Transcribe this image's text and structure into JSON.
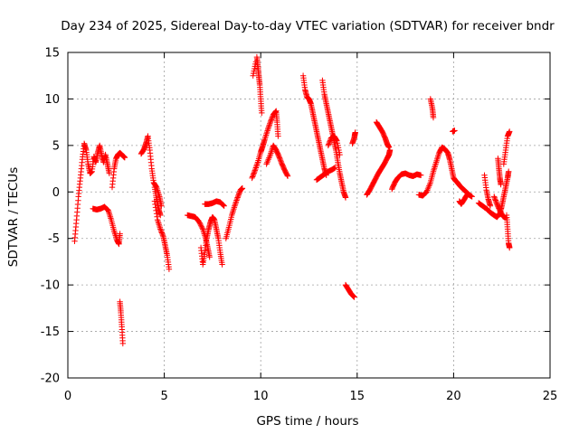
{
  "chart_data": {
    "type": "scatter",
    "title": "Day 234 of 2025, Sidereal Day-to-day VTEC variation (SDTVAR) for receiver bndr",
    "xlabel": "GPS time / hours",
    "ylabel": "SDTVAR / TECUs",
    "xlim": [
      0,
      25
    ],
    "ylim": [
      -20,
      15
    ],
    "xticks": [
      0,
      5,
      10,
      15,
      20,
      25
    ],
    "yticks": [
      -20,
      -15,
      -10,
      -5,
      0,
      5,
      10,
      15
    ],
    "grid": true,
    "marker": "+",
    "marker_color": "#ff0000",
    "series": [
      {
        "name": "SDTVAR",
        "tracks": [
          [
            [
              0.35,
              -5.3
            ],
            [
              0.45,
              -3.0
            ],
            [
              0.55,
              -0.5
            ],
            [
              0.65,
              1.5
            ],
            [
              0.75,
              3.5
            ],
            [
              0.85,
              5.2
            ],
            [
              0.95,
              4.5
            ],
            [
              1.05,
              3.0
            ],
            [
              1.15,
              2.0
            ],
            [
              1.25,
              2.2
            ],
            [
              1.35,
              3.8
            ],
            [
              1.45,
              3.2
            ],
            [
              1.55,
              4.2
            ],
            [
              1.65,
              5.0
            ],
            [
              1.75,
              4.0
            ],
            [
              1.85,
              3.2
            ],
            [
              1.95,
              4.0
            ],
            [
              2.05,
              3.0
            ],
            [
              2.15,
              2.0
            ]
          ],
          [
            [
              1.3,
              -1.8
            ],
            [
              1.5,
              -1.9
            ],
            [
              1.7,
              -1.8
            ],
            [
              1.9,
              -1.6
            ],
            [
              2.1,
              -2.0
            ],
            [
              2.25,
              -3.0
            ],
            [
              2.4,
              -4.2
            ],
            [
              2.55,
              -5.2
            ],
            [
              2.65,
              -5.6
            ],
            [
              2.7,
              -4.5
            ]
          ],
          [
            [
              2.3,
              0.5
            ],
            [
              2.4,
              2.5
            ],
            [
              2.5,
              3.6
            ],
            [
              2.6,
              4.0
            ],
            [
              2.7,
              4.2
            ],
            [
              2.85,
              3.9
            ],
            [
              2.95,
              3.7
            ]
          ],
          [
            [
              2.7,
              -11.8
            ],
            [
              2.75,
              -13.0
            ],
            [
              2.8,
              -14.5
            ],
            [
              2.85,
              -16.3
            ]
          ],
          [
            [
              3.8,
              4.1
            ],
            [
              3.95,
              4.6
            ],
            [
              4.05,
              5.2
            ],
            [
              4.15,
              6.0
            ],
            [
              4.25,
              4.5
            ],
            [
              4.35,
              2.5
            ],
            [
              4.45,
              1.0
            ],
            [
              4.6,
              0.5
            ],
            [
              4.75,
              -0.5
            ],
            [
              4.85,
              -1.5
            ]
          ],
          [
            [
              4.5,
              -1.0
            ],
            [
              4.65,
              -3.0
            ],
            [
              4.8,
              -4.0
            ],
            [
              4.95,
              -4.8
            ],
            [
              5.05,
              -5.8
            ],
            [
              5.15,
              -6.8
            ],
            [
              5.25,
              -8.3
            ]
          ],
          [
            [
              4.5,
              0.5
            ],
            [
              4.6,
              -0.8
            ],
            [
              4.7,
              -1.8
            ],
            [
              4.8,
              -2.5
            ]
          ],
          [
            [
              6.2,
              -2.5
            ],
            [
              6.4,
              -2.6
            ],
            [
              6.6,
              -2.7
            ],
            [
              6.8,
              -3.2
            ],
            [
              7.0,
              -4.0
            ],
            [
              7.15,
              -5.0
            ],
            [
              7.25,
              -6.0
            ],
            [
              7.35,
              -7.0
            ]
          ],
          [
            [
              6.9,
              -6.0
            ],
            [
              7.0,
              -7.8
            ],
            [
              7.1,
              -6.5
            ],
            [
              7.2,
              -5.0
            ],
            [
              7.3,
              -4.0
            ],
            [
              7.4,
              -3.2
            ],
            [
              7.5,
              -2.7
            ],
            [
              7.6,
              -3.0
            ],
            [
              7.7,
              -4.0
            ],
            [
              7.8,
              -5.0
            ],
            [
              7.9,
              -6.5
            ],
            [
              8.0,
              -7.8
            ]
          ],
          [
            [
              7.1,
              -1.3
            ],
            [
              7.3,
              -1.3
            ],
            [
              7.5,
              -1.2
            ],
            [
              7.7,
              -1.0
            ],
            [
              7.9,
              -1.1
            ],
            [
              8.1,
              -1.5
            ]
          ],
          [
            [
              8.2,
              -5.0
            ],
            [
              8.35,
              -3.8
            ],
            [
              8.5,
              -2.5
            ],
            [
              8.65,
              -1.5
            ],
            [
              8.8,
              -0.6
            ],
            [
              8.95,
              0.2
            ],
            [
              9.05,
              0.4
            ]
          ],
          [
            [
              9.55,
              1.5
            ],
            [
              9.7,
              2.3
            ],
            [
              9.85,
              3.2
            ],
            [
              10.0,
              4.3
            ],
            [
              10.1,
              4.9
            ],
            [
              10.2,
              5.6
            ],
            [
              10.35,
              6.6
            ],
            [
              10.5,
              7.5
            ],
            [
              10.65,
              8.3
            ],
            [
              10.8,
              8.7
            ],
            [
              10.85,
              7.5
            ],
            [
              10.9,
              6.0
            ]
          ],
          [
            [
              9.8,
              14.5
            ],
            [
              9.85,
              13.5
            ],
            [
              9.9,
              12.5
            ],
            [
              9.95,
              11.5
            ],
            [
              10.0,
              10.0
            ],
            [
              10.05,
              8.5
            ]
          ],
          [
            [
              9.6,
              12.5
            ],
            [
              9.75,
              14.0
            ]
          ],
          [
            [
              10.3,
              3.0
            ],
            [
              10.5,
              4.0
            ],
            [
              10.65,
              5.0
            ],
            [
              10.8,
              4.5
            ],
            [
              10.95,
              3.8
            ],
            [
              11.1,
              3.0
            ],
            [
              11.25,
              2.3
            ],
            [
              11.4,
              1.7
            ]
          ],
          [
            [
              12.2,
              12.5
            ],
            [
              12.3,
              11.0
            ],
            [
              12.4,
              10.2
            ],
            [
              12.5,
              10.0
            ],
            [
              12.6,
              9.5
            ],
            [
              12.7,
              8.5
            ],
            [
              12.8,
              7.5
            ],
            [
              12.9,
              6.5
            ],
            [
              13.0,
              5.5
            ],
            [
              13.1,
              4.5
            ],
            [
              13.2,
              3.5
            ],
            [
              13.3,
              2.5
            ],
            [
              13.4,
              1.8
            ]
          ],
          [
            [
              13.2,
              12.0
            ],
            [
              13.3,
              10.5
            ],
            [
              13.4,
              9.5
            ],
            [
              13.5,
              8.5
            ],
            [
              13.6,
              7.5
            ],
            [
              13.7,
              6.5
            ],
            [
              13.8,
              5.5
            ],
            [
              13.9,
              4.5
            ],
            [
              14.0,
              3.2
            ],
            [
              14.1,
              2.0
            ],
            [
              14.2,
              1.0
            ],
            [
              14.3,
              0.0
            ],
            [
              14.4,
              -0.6
            ]
          ],
          [
            [
              12.9,
              1.3
            ],
            [
              13.1,
              1.6
            ],
            [
              13.3,
              1.9
            ],
            [
              13.5,
              2.2
            ],
            [
              13.7,
              2.4
            ],
            [
              13.85,
              2.6
            ]
          ],
          [
            [
              13.5,
              5.0
            ],
            [
              13.65,
              5.8
            ],
            [
              13.8,
              6.0
            ],
            [
              13.95,
              5.5
            ],
            [
              14.1,
              4.0
            ]
          ],
          [
            [
              14.4,
              -10.0
            ],
            [
              14.55,
              -10.5
            ],
            [
              14.7,
              -11.0
            ],
            [
              14.85,
              -11.3
            ]
          ],
          [
            [
              14.75,
              5.2
            ],
            [
              14.85,
              5.8
            ],
            [
              14.9,
              6.4
            ]
          ],
          [
            [
              15.5,
              -0.3
            ],
            [
              15.65,
              0.2
            ],
            [
              15.8,
              0.8
            ],
            [
              15.95,
              1.4
            ],
            [
              16.1,
              2.0
            ],
            [
              16.25,
              2.5
            ],
            [
              16.4,
              3.0
            ],
            [
              16.55,
              3.6
            ],
            [
              16.65,
              4.0
            ],
            [
              16.7,
              4.5
            ]
          ],
          [
            [
              16.0,
              7.5
            ],
            [
              16.15,
              7.0
            ],
            [
              16.3,
              6.5
            ],
            [
              16.45,
              5.8
            ],
            [
              16.55,
              5.2
            ],
            [
              16.65,
              4.8
            ]
          ],
          [
            [
              16.8,
              0.3
            ],
            [
              16.95,
              1.0
            ],
            [
              17.1,
              1.5
            ],
            [
              17.3,
              1.9
            ],
            [
              17.5,
              2.0
            ],
            [
              17.7,
              1.8
            ],
            [
              17.9,
              1.7
            ],
            [
              18.1,
              1.9
            ],
            [
              18.3,
              1.8
            ]
          ],
          [
            [
              18.2,
              -0.3
            ],
            [
              18.4,
              -0.4
            ],
            [
              18.6,
              0.0
            ],
            [
              18.8,
              1.0
            ],
            [
              18.95,
              2.2
            ],
            [
              19.1,
              3.2
            ],
            [
              19.25,
              4.2
            ],
            [
              19.4,
              4.8
            ],
            [
              19.55,
              4.6
            ],
            [
              19.7,
              4.2
            ],
            [
              19.8,
              3.5
            ],
            [
              19.9,
              2.5
            ],
            [
              20.0,
              1.5
            ],
            [
              20.1,
              1.2
            ],
            [
              20.2,
              1.0
            ],
            [
              20.35,
              0.6
            ],
            [
              20.5,
              0.3
            ],
            [
              20.65,
              0.0
            ],
            [
              20.8,
              -0.3
            ],
            [
              20.95,
              -0.5
            ]
          ],
          [
            [
              18.8,
              10.0
            ],
            [
              18.9,
              9.0
            ],
            [
              18.95,
              8.0
            ]
          ],
          [
            [
              19.95,
              6.5
            ],
            [
              20.05,
              6.6
            ]
          ],
          [
            [
              20.3,
              -1.0
            ],
            [
              20.4,
              -1.3
            ],
            [
              20.55,
              -0.8
            ],
            [
              20.7,
              -0.3
            ]
          ],
          [
            [
              21.3,
              -1.2
            ],
            [
              21.5,
              -1.5
            ],
            [
              21.7,
              -1.8
            ],
            [
              21.9,
              -2.2
            ],
            [
              22.1,
              -2.5
            ],
            [
              22.25,
              -2.7
            ],
            [
              22.4,
              -2.3
            ],
            [
              22.5,
              -1.5
            ],
            [
              22.6,
              -0.5
            ],
            [
              22.7,
              0.5
            ],
            [
              22.8,
              1.5
            ],
            [
              22.85,
              2.2
            ]
          ],
          [
            [
              21.6,
              1.8
            ],
            [
              21.7,
              0.2
            ],
            [
              21.8,
              -0.8
            ],
            [
              21.9,
              -1.5
            ]
          ],
          [
            [
              22.3,
              3.6
            ],
            [
              22.35,
              2.5
            ],
            [
              22.4,
              1.5
            ],
            [
              22.45,
              0.8
            ]
          ],
          [
            [
              22.6,
              3.0
            ],
            [
              22.7,
              4.5
            ],
            [
              22.8,
              6.0
            ],
            [
              22.9,
              6.5
            ]
          ],
          [
            [
              22.75,
              -2.5
            ],
            [
              22.8,
              -4.0
            ],
            [
              22.85,
              -5.5
            ],
            [
              22.9,
              -6.0
            ]
          ],
          [
            [
              22.1,
              -0.5
            ],
            [
              22.25,
              -1.3
            ],
            [
              22.4,
              -2.0
            ],
            [
              22.55,
              -2.6
            ],
            [
              22.7,
              -2.8
            ]
          ]
        ]
      }
    ]
  }
}
